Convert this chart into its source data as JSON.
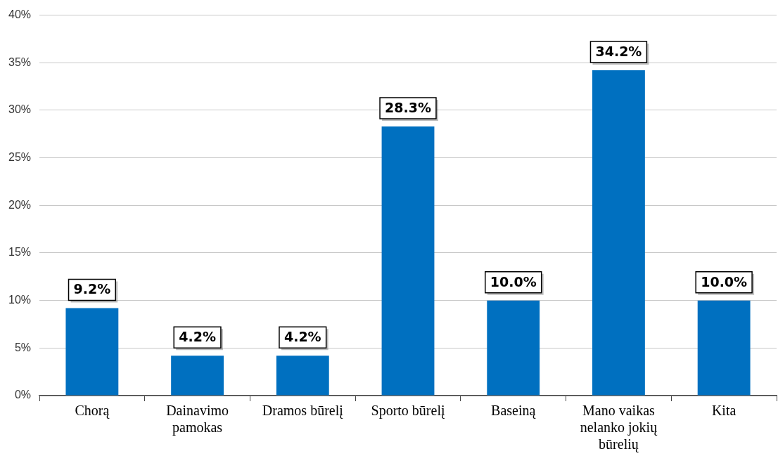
{
  "chart_data": {
    "type": "bar",
    "categories": [
      "Chorą",
      "Dainavimo pamokas",
      "Dramos būrelį",
      "Sporto būrelį",
      "Baseiną",
      "Mano vaikas nelanko jokių būrelių",
      "Kita"
    ],
    "values": [
      9.2,
      4.2,
      4.2,
      28.3,
      10.0,
      34.2,
      10.0
    ],
    "value_labels": [
      "9.2%",
      "4.2%",
      "4.2%",
      "28.3%",
      "10.0%",
      "34.2%",
      "10.0%"
    ],
    "color": "#0070c0",
    "ylim": [
      0,
      40
    ],
    "yticks": [
      {
        "value": 0,
        "label": "0%"
      },
      {
        "value": 5,
        "label": "5%"
      },
      {
        "value": 10,
        "label": "10%"
      },
      {
        "value": 15,
        "label": "15%"
      },
      {
        "value": 20,
        "label": "20%"
      },
      {
        "value": 25,
        "label": "25%"
      },
      {
        "value": 30,
        "label": "30%"
      },
      {
        "value": 35,
        "label": "35%"
      },
      {
        "value": 40,
        "label": "40%"
      }
    ],
    "grid": "y"
  }
}
